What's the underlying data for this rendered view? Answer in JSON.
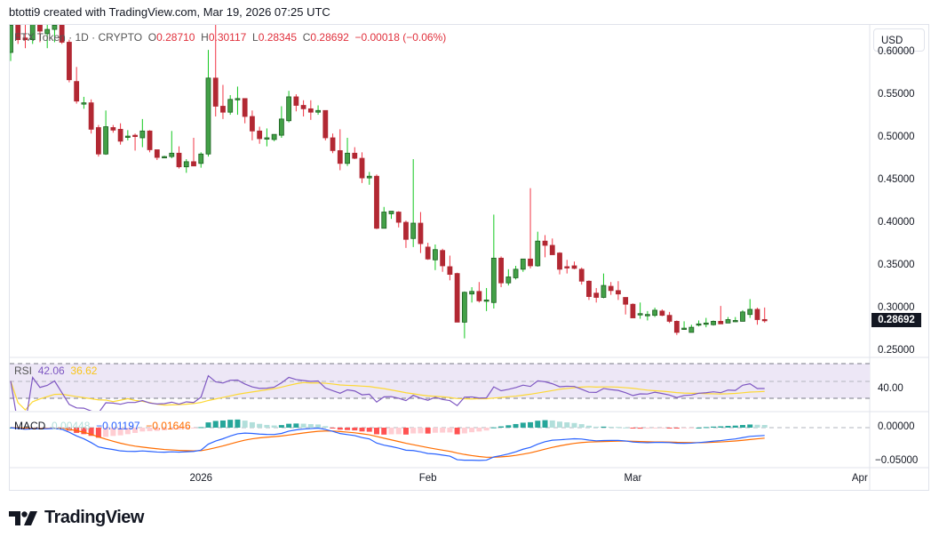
{
  "credit": "btotti9 created with TradingView.com, Mar 19, 2026 07:25 UTC",
  "legend": {
    "symbol": "FTX Token",
    "interval": "1D",
    "exchange": "CRYPTO",
    "open_label": "O",
    "open": "0.28710",
    "high_label": "H",
    "high": "0.30117",
    "low_label": "L",
    "low": "0.28345",
    "close_label": "C",
    "close": "0.28692",
    "change": "−0.00018 (−0.06%)"
  },
  "currency_button": "USD",
  "last_price_tag": "0.28692",
  "rsi": {
    "label": "RSI",
    "value": "42.06",
    "ma_value": "36.62",
    "axis_label": "40.00"
  },
  "macd": {
    "label": "MACD",
    "histogram": "0.00448",
    "macd_value": "−0.01197",
    "signal_value": "−0.01646",
    "axis_labels": [
      "0.00000",
      "−0.05000"
    ]
  },
  "logo_text": "TradingView",
  "colors": {
    "up": "#43a047",
    "up_wick": "#12c81e",
    "up_border": "#1b5e20",
    "down": "#b22833",
    "down_wick": "#f23645",
    "rsi": "#7e57c2",
    "rsi_ma": "#fdd835",
    "macd": "#2962ff",
    "signal": "#ff6d00",
    "hist_up": "#26a69a",
    "hist_up_light": "#b2dfdb",
    "hist_down": "#ff5252",
    "hist_down_light": "#ffcdd2",
    "rsi_band": "#ede7f6"
  },
  "chart_data": {
    "type": "candlestick",
    "title": "FTX Token · 1D · CRYPTO",
    "price_axis": {
      "ticks": [
        "0.60000",
        "0.55000",
        "0.50000",
        "0.45000",
        "0.40000",
        "0.35000",
        "0.30000",
        "0.25000"
      ]
    },
    "time_axis": {
      "ticks": [
        "2026",
        "Feb",
        "Mar",
        "Apr"
      ]
    },
    "grid": false,
    "candles": [
      [
        "Dec 6",
        0.6,
        0.64,
        0.59,
        0.632
      ],
      [
        "Dec 7",
        0.632,
        0.64,
        0.61,
        0.615
      ],
      [
        "Dec 8",
        0.617,
        0.64,
        0.605,
        0.615
      ],
      [
        "Dec 9",
        0.615,
        0.64,
        0.61,
        0.635
      ],
      [
        "Dec 10",
        0.635,
        0.64,
        0.612,
        0.625
      ],
      [
        "Dec 11",
        0.622,
        0.64,
        0.605,
        0.627
      ],
      [
        "Dec 12",
        0.627,
        0.64,
        0.612,
        0.632
      ],
      [
        "Dec 13",
        0.632,
        0.64,
        0.61,
        0.612
      ],
      [
        "Dec 14",
        0.612,
        0.615,
        0.565,
        0.568
      ],
      [
        "Dec 15",
        0.566,
        0.583,
        0.54,
        0.543
      ],
      [
        "Dec 16",
        0.54,
        0.548,
        0.534,
        0.541
      ],
      [
        "Dec 17",
        0.541,
        0.545,
        0.505,
        0.51
      ],
      [
        "Dec 18",
        0.512,
        0.515,
        0.478,
        0.481
      ],
      [
        "Dec 19",
        0.481,
        0.532,
        0.48,
        0.513
      ],
      [
        "Dec 20",
        0.512,
        0.515,
        0.506,
        0.509
      ],
      [
        "Dec 21",
        0.51,
        0.517,
        0.492,
        0.496
      ],
      [
        "Dec 22",
        0.502,
        0.509,
        0.497,
        0.502
      ],
      [
        "Dec 23",
        0.503,
        0.505,
        0.485,
        0.502
      ],
      [
        "Dec 24",
        0.5,
        0.522,
        0.489,
        0.508
      ],
      [
        "Dec 25",
        0.508,
        0.509,
        0.483,
        0.486
      ],
      [
        "Dec 26",
        0.486,
        0.486,
        0.474,
        0.477
      ],
      [
        "Dec 27",
        0.478,
        0.479,
        0.477,
        0.478
      ],
      [
        "Dec 28",
        0.478,
        0.508,
        0.476,
        0.482
      ],
      [
        "Dec 29",
        0.482,
        0.49,
        0.464,
        0.466
      ],
      [
        "Dec 30",
        0.466,
        0.475,
        0.459,
        0.472
      ],
      [
        "Dec 31",
        0.472,
        0.5,
        0.47,
        0.467
      ],
      [
        "Jan 1",
        0.47,
        0.483,
        0.465,
        0.481
      ],
      [
        "Jan 2",
        0.481,
        0.603,
        0.478,
        0.57
      ],
      [
        "Jan 3",
        0.57,
        0.64,
        0.525,
        0.537
      ],
      [
        "Jan 4",
        0.537,
        0.562,
        0.522,
        0.53
      ],
      [
        "Jan 5",
        0.53,
        0.55,
        0.527,
        0.545
      ],
      [
        "Jan 6",
        0.546,
        0.56,
        0.527,
        0.546
      ],
      [
        "Jan 7",
        0.546,
        0.546,
        0.517,
        0.525
      ],
      [
        "Jan 8",
        0.525,
        0.532,
        0.497,
        0.508
      ],
      [
        "Jan 9",
        0.508,
        0.513,
        0.493,
        0.499
      ],
      [
        "Jan 10",
        0.5,
        0.511,
        0.49,
        0.5
      ],
      [
        "Jan 11",
        0.498,
        0.504,
        0.496,
        0.504
      ],
      [
        "Jan 12",
        0.503,
        0.537,
        0.5,
        0.522
      ],
      [
        "Jan 13",
        0.52,
        0.555,
        0.518,
        0.548
      ],
      [
        "Jan 14",
        0.548,
        0.551,
        0.531,
        0.538
      ],
      [
        "Jan 15",
        0.538,
        0.544,
        0.525,
        0.534
      ],
      [
        "Jan 16",
        0.534,
        0.544,
        0.521,
        0.53
      ],
      [
        "Jan 17",
        0.53,
        0.538,
        0.527,
        0.532
      ],
      [
        "Jan 18",
        0.532,
        0.532,
        0.497,
        0.5
      ],
      [
        "Jan 19",
        0.5,
        0.505,
        0.482,
        0.485
      ],
      [
        "Jan 20",
        0.485,
        0.51,
        0.462,
        0.47
      ],
      [
        "Jan 21",
        0.47,
        0.5,
        0.467,
        0.482
      ],
      [
        "Jan 22",
        0.482,
        0.489,
        0.475,
        0.476
      ],
      [
        "Jan 23",
        0.476,
        0.483,
        0.447,
        0.453
      ],
      [
        "Jan 24",
        0.453,
        0.46,
        0.445,
        0.455
      ],
      [
        "Jan 25",
        0.455,
        0.457,
        0.393,
        0.394
      ],
      [
        "Jan 26",
        0.394,
        0.419,
        0.394,
        0.413
      ],
      [
        "Jan 27",
        0.411,
        0.414,
        0.405,
        0.414
      ],
      [
        "Jan 28",
        0.413,
        0.414,
        0.395,
        0.401
      ],
      [
        "Jan 29",
        0.401,
        0.403,
        0.371,
        0.381
      ],
      [
        "Jan 30",
        0.382,
        0.475,
        0.372,
        0.4
      ],
      [
        "Jan 31",
        0.4,
        0.413,
        0.365,
        0.376
      ],
      [
        "Feb 1",
        0.372,
        0.377,
        0.357,
        0.358
      ],
      [
        "Feb 2",
        0.357,
        0.375,
        0.345,
        0.369
      ],
      [
        "Feb 3",
        0.368,
        0.37,
        0.343,
        0.35
      ],
      [
        "Feb 4",
        0.349,
        0.362,
        0.333,
        0.34
      ],
      [
        "Feb 5",
        0.341,
        0.342,
        0.284,
        0.284
      ],
      [
        "Feb 6",
        0.284,
        0.32,
        0.265,
        0.319
      ],
      [
        "Feb 7",
        0.317,
        0.325,
        0.307,
        0.32
      ],
      [
        "Feb 8",
        0.32,
        0.331,
        0.307,
        0.309
      ],
      [
        "Feb 9",
        0.31,
        0.324,
        0.297,
        0.31
      ],
      [
        "Feb 10",
        0.307,
        0.41,
        0.3,
        0.359
      ],
      [
        "Feb 11",
        0.359,
        0.361,
        0.325,
        0.33
      ],
      [
        "Feb 12",
        0.33,
        0.346,
        0.327,
        0.337
      ],
      [
        "Feb 13",
        0.336,
        0.35,
        0.334,
        0.346
      ],
      [
        "Feb 14",
        0.346,
        0.358,
        0.343,
        0.358
      ],
      [
        "Feb 15",
        0.358,
        0.441,
        0.347,
        0.35
      ],
      [
        "Feb 16",
        0.35,
        0.39,
        0.349,
        0.379
      ],
      [
        "Feb 17",
        0.379,
        0.386,
        0.36,
        0.374
      ],
      [
        "Feb 18",
        0.374,
        0.382,
        0.365,
        0.363
      ],
      [
        "Feb 19",
        0.365,
        0.366,
        0.34,
        0.346
      ],
      [
        "Feb 20",
        0.349,
        0.357,
        0.341,
        0.348
      ],
      [
        "Feb 21",
        0.35,
        0.355,
        0.346,
        0.347
      ],
      [
        "Feb 22",
        0.346,
        0.348,
        0.328,
        0.332
      ],
      [
        "Feb 23",
        0.332,
        0.333,
        0.31,
        0.314
      ],
      [
        "Feb 24",
        0.318,
        0.324,
        0.307,
        0.313
      ],
      [
        "Feb 25",
        0.313,
        0.341,
        0.312,
        0.327
      ],
      [
        "Feb 26",
        0.326,
        0.331,
        0.316,
        0.321
      ],
      [
        "Feb 27",
        0.321,
        0.332,
        0.31,
        0.317
      ],
      [
        "Feb 28",
        0.313,
        0.313,
        0.293,
        0.305
      ],
      [
        "Mar 1",
        0.305,
        0.306,
        0.289,
        0.289
      ],
      [
        "Mar 2",
        0.294,
        0.307,
        0.288,
        0.294
      ],
      [
        "Mar 3",
        0.293,
        0.297,
        0.286,
        0.293
      ],
      [
        "Mar 4",
        0.292,
        0.301,
        0.29,
        0.298
      ],
      [
        "Mar 5",
        0.297,
        0.299,
        0.291,
        0.292
      ],
      [
        "Mar 6",
        0.292,
        0.296,
        0.283,
        0.285
      ],
      [
        "Mar 7",
        0.285,
        0.286,
        0.269,
        0.272
      ],
      [
        "Mar 8",
        0.277,
        0.285,
        0.275,
        0.277
      ],
      [
        "Mar 9",
        0.272,
        0.281,
        0.272,
        0.278
      ],
      [
        "Mar 10",
        0.282,
        0.286,
        0.279,
        0.282
      ],
      [
        "Mar 11",
        0.282,
        0.289,
        0.278,
        0.283
      ],
      [
        "Mar 12",
        0.281,
        0.286,
        0.28,
        0.285
      ],
      [
        "Mar 13",
        0.285,
        0.303,
        0.282,
        0.282
      ],
      [
        "Mar 14",
        0.283,
        0.29,
        0.283,
        0.287
      ],
      [
        "Mar 15",
        0.286,
        0.29,
        0.284,
        0.286
      ],
      [
        "Mar 16",
        0.285,
        0.298,
        0.285,
        0.296
      ],
      [
        "Mar 17",
        0.293,
        0.311,
        0.289,
        0.299
      ],
      [
        "Mar 18",
        0.299,
        0.301,
        0.281,
        0.287
      ],
      [
        "Mar 19",
        0.2871,
        0.30117,
        0.28345,
        0.28692
      ]
    ]
  }
}
